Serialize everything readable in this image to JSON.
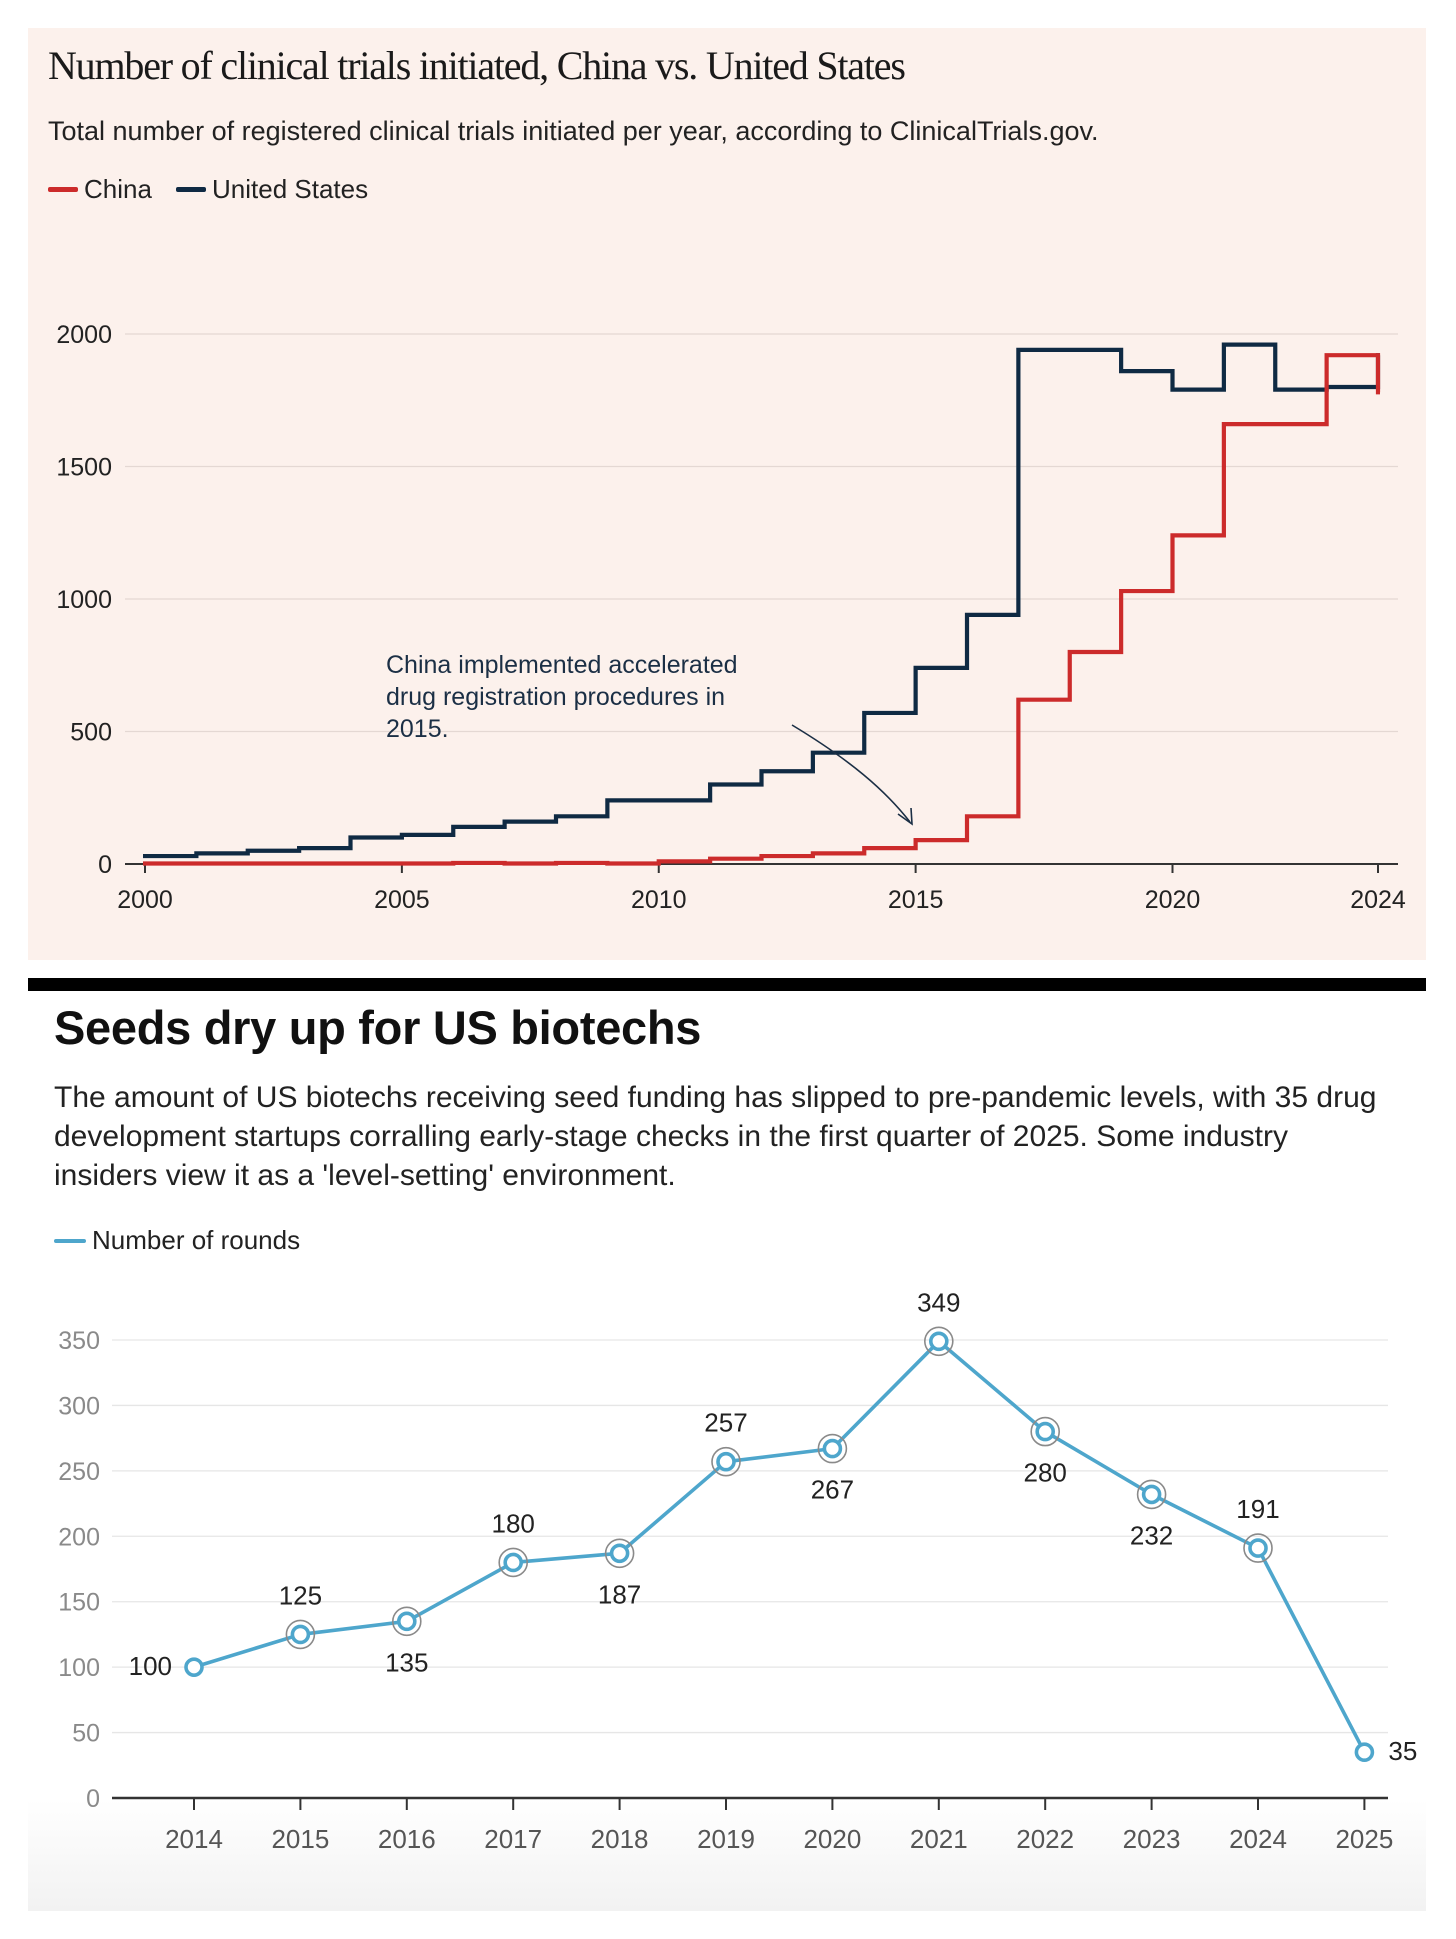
{
  "chart1": {
    "title": "Number of clinical trials initiated, China vs. United States",
    "subtitle": "Total number of registered clinical trials initiated per year, according to ClinicalTrials.gov.",
    "legend": [
      {
        "name": "China",
        "color": "#cc2b2b"
      },
      {
        "name": "United States",
        "color": "#0f2a43"
      }
    ],
    "annotation": [
      "China implemented accelerated",
      "drug registration procedures in",
      "2015."
    ]
  },
  "chart2": {
    "title": "Seeds dry up for US biotechs",
    "subtitle": "The amount of US biotechs receiving seed funding has slipped to pre-pandemic levels, with 35 drug development startups corralling early-stage checks in the first quarter of 2025. Some industry insiders view it as a 'level-setting' environment.",
    "legend": "Number of rounds",
    "color": "#4ea6cc"
  },
  "chart_data": [
    {
      "type": "line",
      "step": true,
      "title": "Number of clinical trials initiated, China vs. United States",
      "subtitle": "Total number of registered clinical trials initiated per year, according to ClinicalTrials.gov.",
      "x": [
        2000,
        2001,
        2002,
        2003,
        2004,
        2005,
        2006,
        2007,
        2008,
        2009,
        2010,
        2011,
        2012,
        2013,
        2014,
        2015,
        2016,
        2017,
        2018,
        2019,
        2020,
        2021,
        2022,
        2023,
        2024
      ],
      "series": [
        {
          "name": "China",
          "color": "#cc2b2b",
          "values": [
            2,
            2,
            2,
            2,
            2,
            2,
            4,
            2,
            4,
            2,
            10,
            20,
            30,
            40,
            60,
            90,
            180,
            620,
            800,
            1030,
            1240,
            1660,
            1660,
            1920,
            1780
          ]
        },
        {
          "name": "United States",
          "color": "#0f2a43",
          "values": [
            30,
            40,
            50,
            60,
            100,
            110,
            140,
            160,
            180,
            240,
            240,
            300,
            350,
            420,
            570,
            740,
            940,
            1940,
            1940,
            1860,
            1790,
            1960,
            1790,
            1800,
            1920
          ]
        }
      ],
      "xticks": [
        "2000",
        "2005",
        "2010",
        "2015",
        "2020",
        "2024"
      ],
      "yticks": [
        "0",
        "500",
        "1000",
        "1500",
        "2000"
      ],
      "xlim": [
        2000,
        2024
      ],
      "ylim": [
        0,
        2000
      ],
      "grid": true,
      "legend_position": "top-left"
    },
    {
      "type": "line",
      "title": "Seeds dry up for US biotechs",
      "categories": [
        "2014",
        "2015",
        "2016",
        "2017",
        "2018",
        "2019",
        "2020",
        "2021",
        "2022",
        "2023",
        "2024",
        "2025"
      ],
      "series": [
        {
          "name": "Number of rounds",
          "color": "#4ea6cc",
          "values": [
            100,
            125,
            135,
            180,
            187,
            257,
            267,
            349,
            280,
            232,
            191,
            35
          ]
        }
      ],
      "yticks": [
        "0",
        "50",
        "100",
        "150",
        "200",
        "250",
        "300",
        "350"
      ],
      "ylim": [
        0,
        350
      ],
      "grid": true,
      "legend_position": "top-left"
    }
  ]
}
